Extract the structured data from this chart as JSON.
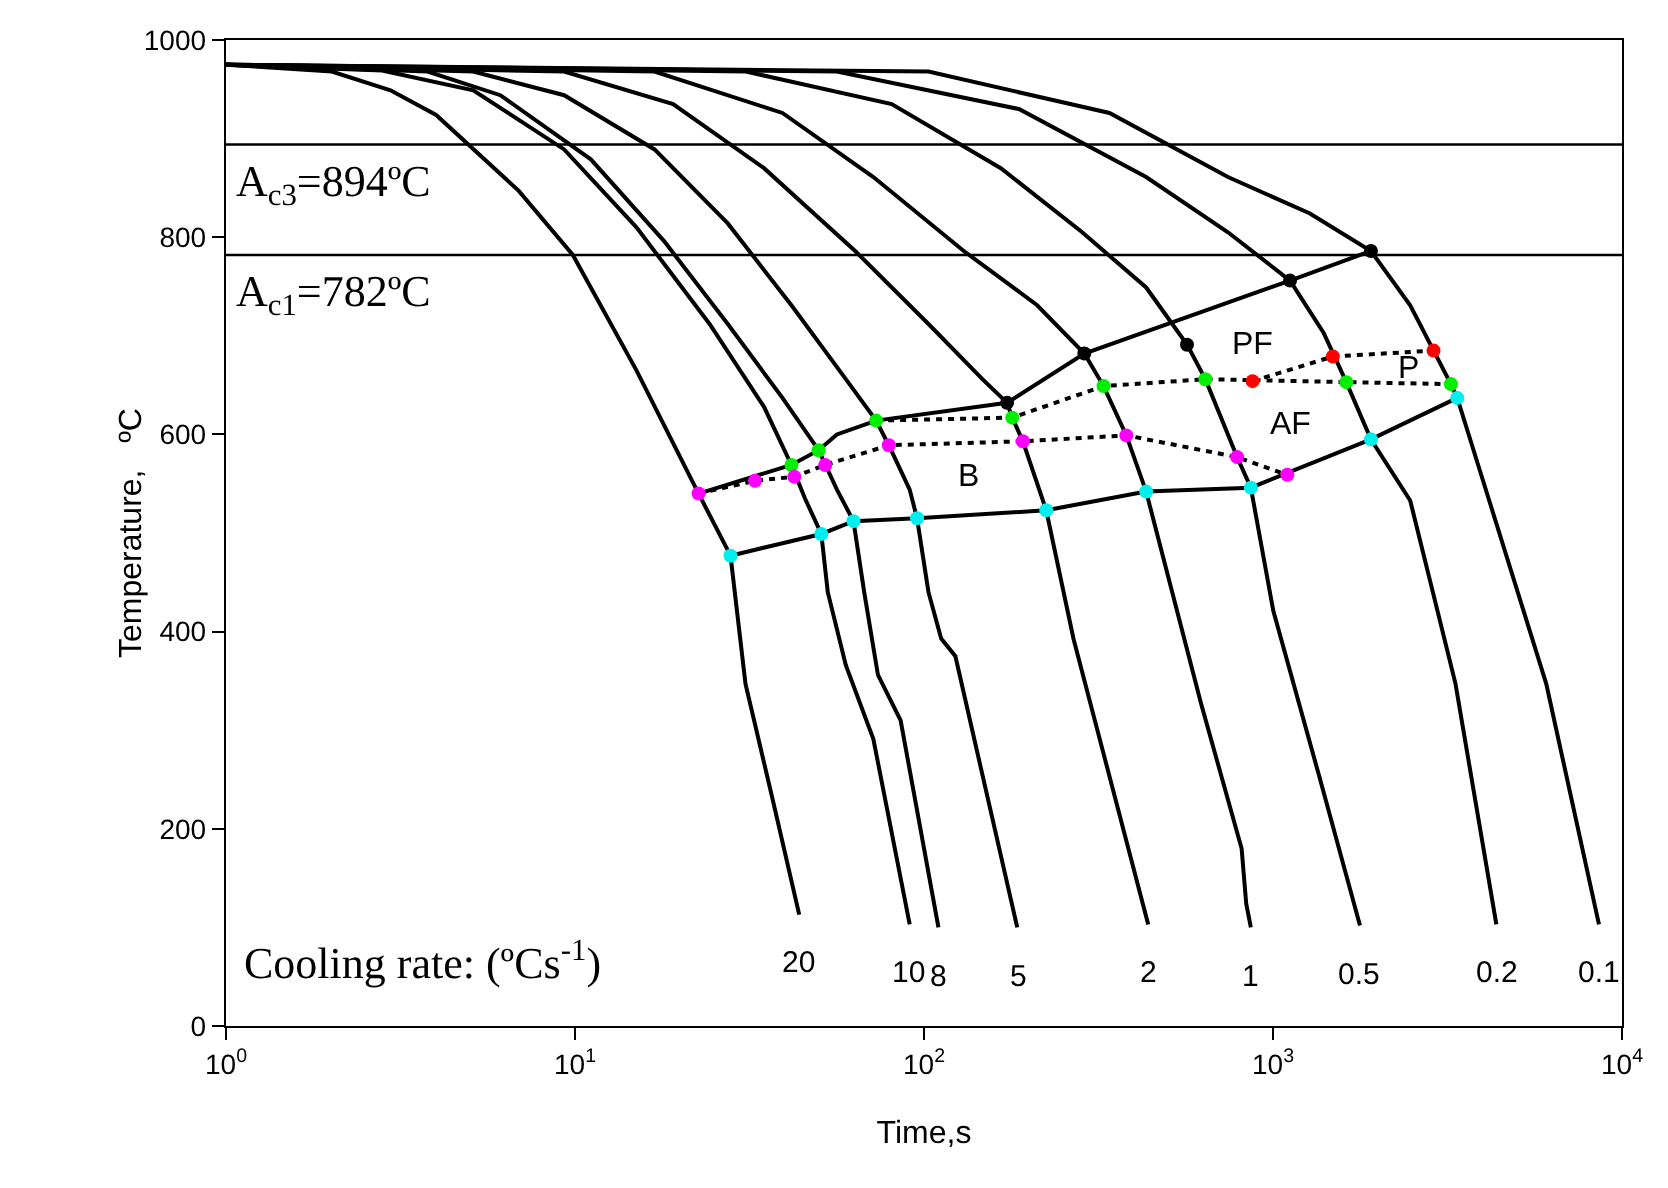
{
  "chart_data": {
    "type": "line",
    "xlabel": "Time,s",
    "ylabel": "Temperature,   ºC",
    "log": "x",
    "xlim": [
      1,
      10000
    ],
    "ylim": [
      0,
      1000
    ],
    "xticks": [
      {
        "value": 1,
        "label": "10$^{0}$"
      },
      {
        "value": 10,
        "label": "10$^{1}$"
      },
      {
        "value": 100,
        "label": "10$^{2}$"
      },
      {
        "value": 1000,
        "label": "10$^{3}$"
      },
      {
        "value": 10000,
        "label": "10$^{4}$"
      }
    ],
    "yticks": [
      0,
      200,
      400,
      600,
      800,
      1000
    ],
    "grid": false,
    "legend": false,
    "series": [
      {
        "name": "20",
        "color": "#000000",
        "line_style": "solid",
        "marker": "none",
        "x": [
          1,
          2.01,
          2.96,
          4.0,
          6.9,
          9.86,
          15.0,
          22.6,
          27.9,
          30.8,
          37.0,
          43.9
        ],
        "values": [
          975,
          968,
          949,
          924,
          847,
          782,
          665,
          540,
          477,
          347,
          227,
          113
        ]
      },
      {
        "name": "10",
        "color": "#000000",
        "line_style": "solid",
        "marker": "none",
        "x": [
          1,
          2.8,
          5.11,
          9.31,
          15.0,
          24.3,
          34.8,
          41.7,
          45.6,
          50.8,
          53.0,
          59.7,
          71.6,
          91
        ],
        "values": [
          975,
          969,
          949,
          889,
          810,
          712,
          628,
          569,
          535,
          499,
          440,
          366,
          291,
          103
        ]
      },
      {
        "name": "8",
        "color": "#000000",
        "line_style": "solid",
        "marker": "none",
        "x": [
          1,
          3.78,
          6.11,
          11.1,
          18.0,
          27.4,
          39.3,
          49.9,
          56.3,
          62.8,
          67.4,
          73.8,
          85.7,
          110
        ],
        "values": [
          975,
          968,
          944,
          879,
          796,
          712,
          637,
          584,
          544,
          512,
          440,
          356,
          310,
          100
        ]
      },
      {
        "name": "5",
        "color": "#000000",
        "line_style": "solid",
        "marker": "none",
        "x": [
          1,
          5.11,
          9.31,
          16.9,
          27.4,
          41.7,
          59.7,
          72.9,
          79.3,
          91,
          95.5,
          103,
          112,
          123,
          185
        ],
        "values": [
          975,
          968,
          944,
          889,
          814,
          731,
          656,
          614,
          589,
          544,
          515,
          440,
          393,
          375,
          100
        ]
      },
      {
        "name": "2",
        "color": "#000000",
        "line_style": "solid",
        "marker": "none",
        "x": [
          1,
          9.31,
          19.1,
          34.8,
          63.5,
          103,
          147,
          173,
          179,
          192,
          224,
          268,
          439
        ],
        "values": [
          975,
          968,
          935,
          870,
          786,
          712,
          656,
          632,
          617,
          593,
          523,
          393,
          103
        ]
      },
      {
        "name": "1",
        "color": "#000000",
        "line_style": "solid",
        "marker": "none",
        "x": [
          1,
          16.9,
          39.3,
          71.6,
          130,
          211,
          288,
          327,
          380,
          433,
          621,
          813,
          838,
          864
        ],
        "values": [
          975,
          968,
          926,
          861,
          786,
          731,
          682,
          649,
          599,
          542,
          328,
          180,
          124,
          100
        ]
      },
      {
        "name": "0.5",
        "color": "#000000",
        "line_style": "solid",
        "marker": "none",
        "x": [
          1,
          30.9,
          80.8,
          166,
          284,
          433,
          567,
          640,
          789,
          864,
          1002,
          1355,
          1775
        ],
        "values": [
          975,
          968,
          935,
          870,
          805,
          749,
          691,
          656,
          577,
          546,
          421,
          254,
          102
        ]
      },
      {
        "name": "0.2",
        "color": "#000000",
        "line_style": "solid",
        "marker": "none",
        "x": [
          1,
          56.3,
          187,
          433,
          743,
          1119,
          1397,
          1622,
          1908,
          2472,
          3334,
          4365
        ],
        "values": [
          975,
          968,
          930,
          861,
          805,
          756,
          703,
          653,
          595,
          533,
          347,
          103
        ]
      },
      {
        "name": "0.1",
        "color": "#000000",
        "line_style": "solid",
        "marker": "none",
        "x": [
          1,
          103,
          340,
          743,
          1276,
          1908,
          2472,
          3234,
          3373,
          3990,
          6067,
          8590
        ],
        "values": [
          975,
          968,
          926,
          861,
          824,
          786,
          731,
          651,
          637,
          554,
          347,
          103
        ]
      },
      {
        "color": "#000000",
        "line_style": "solid",
        "marker": "none",
        "x": [
          22.6,
          41.7,
          49.9,
          56.3,
          72.9,
          173,
          288,
          1119,
          1908
        ],
        "values": [
          540,
          569,
          584,
          600,
          614,
          632,
          682,
          756,
          786
        ]
      },
      {
        "color": "#000000",
        "line_style": "solid",
        "marker": "none",
        "x": [
          27.9,
          50.8,
          62.8,
          95.5,
          224,
          433,
          864,
          1908,
          3373
        ],
        "values": [
          477,
          499,
          512,
          515,
          523,
          542,
          546,
          595,
          637
        ]
      },
      {
        "color": "#000000",
        "line_style": "dotted",
        "marker": "none",
        "x": [
          22.6,
          32.8,
          42.5,
          52.1,
          79.3,
          192,
          380,
          789,
          1099
        ],
        "values": [
          540,
          553,
          557,
          569,
          589,
          593,
          599,
          577,
          559
        ]
      },
      {
        "color": "#000000",
        "line_style": "dotted",
        "marker": "none",
        "x": [
          72.9,
          179,
          327,
          640,
          1622,
          3234
        ],
        "values": [
          614,
          617,
          649,
          656,
          653,
          651
        ]
      },
      {
        "color": "#000000",
        "line_style": "dotted",
        "marker": "none",
        "x": [
          874,
          1484,
          2884
        ],
        "values": [
          654,
          679,
          685
        ]
      },
      {
        "type": "scatter",
        "color": "#000000",
        "marker": "circle",
        "x": [
          173,
          288,
          567,
          1119,
          1908
        ],
        "values": [
          632,
          682,
          691,
          756,
          786
        ]
      },
      {
        "type": "scatter",
        "color": "#00ee00",
        "marker": "circle",
        "x": [
          41.7,
          49.9,
          72.9,
          179,
          327,
          640,
          1622,
          3234
        ],
        "values": [
          569,
          584,
          614,
          617,
          649,
          656,
          653,
          651
        ]
      },
      {
        "type": "scatter",
        "color": "#ff00ff",
        "marker": "circle",
        "x": [
          22.6,
          32.8,
          42.5,
          52.1,
          79.3,
          192,
          380,
          789,
          1099
        ],
        "values": [
          540,
          553,
          557,
          569,
          589,
          593,
          599,
          577,
          559
        ]
      },
      {
        "type": "scatter",
        "color": "#00eeee",
        "marker": "circle",
        "x": [
          27.9,
          50.8,
          62.8,
          95.5,
          224,
          433,
          864,
          1908,
          3373
        ],
        "values": [
          477,
          499,
          512,
          515,
          523,
          542,
          546,
          595,
          637
        ]
      },
      {
        "type": "scatter",
        "color": "#ff0000",
        "marker": "circle",
        "x": [
          874,
          1484,
          2884
        ],
        "values": [
          654,
          679,
          685
        ]
      }
    ],
    "ref_lines": [
      {
        "axis": "y",
        "value": 894,
        "label": "A$_{c3}$=894ºC",
        "color": "#000000"
      },
      {
        "axis": "y",
        "value": 782,
        "label": "A$_{c1}$=782ºC",
        "color": "#000000"
      }
    ],
    "annotations": [
      "PF",
      "P",
      "AF",
      "B",
      "Cooling rate: (ºCs$^{-1}$)"
    ]
  }
}
